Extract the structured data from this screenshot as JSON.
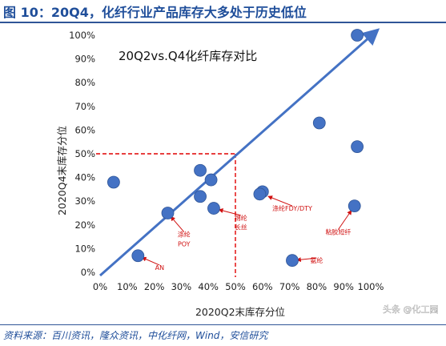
{
  "header": {
    "figure_title": "图 10：20Q4，化纤行业产品库存大多处于历史低位"
  },
  "source": "资料来源：百川资讯，隆众资讯，中化纤网，Wind，安信研究",
  "watermark": "头条 @化工园",
  "colors": {
    "header": "#1f4e9a",
    "marker": "#4472c4",
    "arrow": "#4472c4",
    "reference_line": "#e00000",
    "annotation": "#d01010"
  },
  "chart_data": {
    "type": "scatter",
    "title": "20Q2vs.Q4化纤库存对比",
    "xlabel": "2020Q2末库存分位",
    "ylabel": "2020Q4末库存分位",
    "xlim": [
      0,
      100
    ],
    "ylim": [
      0,
      100
    ],
    "x_ticks": [
      "0%",
      "10%",
      "20%",
      "30%",
      "40%",
      "50%",
      "60%",
      "70%",
      "80%",
      "90%",
      "100%"
    ],
    "y_ticks": [
      "0%",
      "10%",
      "20%",
      "30%",
      "40%",
      "50%",
      "60%",
      "70%",
      "80%",
      "90%",
      "100%"
    ],
    "reference_lines": {
      "x": 50,
      "y": 50
    },
    "diagonal_arrow": {
      "from": [
        0,
        0
      ],
      "to": [
        100,
        100
      ]
    },
    "points": [
      {
        "x": 95,
        "y": 100
      },
      {
        "x": 81,
        "y": 63
      },
      {
        "x": 95,
        "y": 53
      },
      {
        "x": 5,
        "y": 38
      },
      {
        "x": 37,
        "y": 43
      },
      {
        "x": 41,
        "y": 39
      },
      {
        "x": 37,
        "y": 32
      },
      {
        "x": 60,
        "y": 34
      },
      {
        "x": 59,
        "y": 33
      },
      {
        "x": 25,
        "y": 25
      },
      {
        "x": 42,
        "y": 27
      },
      {
        "x": 94,
        "y": 28
      },
      {
        "x": 14,
        "y": 7
      },
      {
        "x": 71,
        "y": 5
      }
    ],
    "annotations": [
      {
        "text": "涤纶",
        "x": 31,
        "y": 15,
        "arrow_to": [
          25,
          25
        ]
      },
      {
        "text": "POY",
        "x": 31,
        "y": 11
      },
      {
        "text": "锦纶",
        "x": 52,
        "y": 22,
        "arrow_to": [
          42,
          27
        ]
      },
      {
        "text": "长丝",
        "x": 52,
        "y": 18
      },
      {
        "text": "涤纶FDY/DTY",
        "x": 71,
        "y": 26,
        "arrow_to": [
          60,
          33
        ]
      },
      {
        "text": "粘胶短纤",
        "x": 88,
        "y": 16,
        "arrow_to": [
          94,
          28
        ]
      },
      {
        "text": "AN",
        "x": 22,
        "y": 1,
        "arrow_to": [
          14,
          7
        ]
      },
      {
        "text": "氨纶",
        "x": 80,
        "y": 4,
        "arrow_to": [
          71,
          5
        ]
      }
    ]
  }
}
